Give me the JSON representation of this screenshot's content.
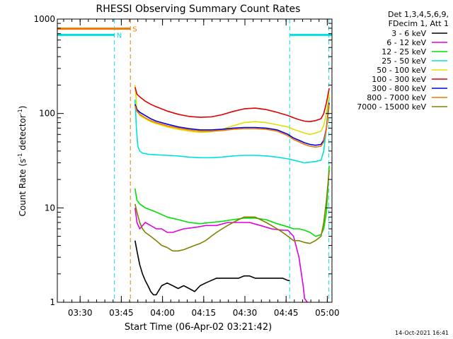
{
  "chart_data": {
    "type": "line",
    "title": "RHESSI Observing Summary Count Rates",
    "xlabel": "Start Time (06-Apr-02 03:21:42)",
    "ylabel_main": "Count Rate (s",
    "ylabel_sup1": "-1",
    "ylabel_mid": " detector",
    "ylabel_sup2": "-1",
    "ylabel_end": ")",
    "x_unit": "minutes after 03:21:42",
    "xlim": [
      0,
      100
    ],
    "ylim": [
      1,
      1000
    ],
    "yscale": "log",
    "yticks": [
      {
        "value": 1,
        "label": "1"
      },
      {
        "value": 10,
        "label": "10"
      },
      {
        "value": 100,
        "label": "100"
      },
      {
        "value": 1000,
        "label": "1000"
      }
    ],
    "xticks": [
      {
        "value": 8.3,
        "label": "03:30"
      },
      {
        "value": 23.3,
        "label": "03:45"
      },
      {
        "value": 38.3,
        "label": "04:00"
      },
      {
        "value": 53.3,
        "label": "04:15"
      },
      {
        "value": 68.3,
        "label": "04:30"
      },
      {
        "value": 83.3,
        "label": "04:45"
      },
      {
        "value": 98.3,
        "label": "05:00"
      }
    ],
    "legend_header": [
      "Det 1,3,4,5,6,9,",
      "FDecim 1, Att 1"
    ],
    "legend_placement": "right",
    "footer": "14-Oct-2021 16:41",
    "flags": [
      {
        "label": "N",
        "color": "#00e0e0",
        "y": 680,
        "segments": [
          [
            0,
            20.8
          ],
          [
            84.6,
            100
          ]
        ]
      },
      {
        "label": "S",
        "color": "#f07800",
        "y": 790,
        "segments": [
          [
            0,
            26.6
          ]
        ]
      }
    ],
    "vlines": [
      {
        "x": 20.8,
        "color": "#00e0e0"
      },
      {
        "x": 26.6,
        "color": "#f07800"
      },
      {
        "x": 84.6,
        "color": "#00e0e0"
      },
      {
        "x": 98.8,
        "color": "#00e0e0"
      }
    ],
    "series": [
      {
        "name": "3 - 6 keV",
        "color": "#000000",
        "x": [
          28.3,
          29,
          30,
          31,
          32,
          33,
          34,
          35,
          36,
          38,
          40,
          42,
          44,
          46,
          48,
          50,
          52,
          54,
          56,
          58,
          60,
          62,
          64,
          66,
          68,
          70,
          72,
          74,
          76,
          78,
          80,
          82,
          84,
          84.6
        ],
        "y": [
          4.5,
          3.5,
          2.5,
          2,
          1.7,
          1.5,
          1.3,
          1.2,
          1.2,
          1.5,
          1.6,
          1.5,
          1.4,
          1.5,
          1.4,
          1.3,
          1.5,
          1.6,
          1.7,
          1.8,
          1.8,
          1.8,
          1.8,
          1.8,
          1.9,
          1.9,
          1.8,
          1.8,
          1.8,
          1.8,
          1.8,
          1.8,
          1.7,
          1.7
        ]
      },
      {
        "name": "6 - 12 keV",
        "color": "#e000e0",
        "x": [
          28.3,
          29,
          30,
          32,
          34,
          36,
          38,
          40,
          42,
          46,
          50,
          54,
          58,
          62,
          66,
          70,
          74,
          78,
          82,
          84,
          86,
          88,
          89.5,
          90,
          91
        ],
        "y": [
          10,
          7,
          6,
          7,
          6.5,
          6,
          6,
          5.5,
          5.5,
          6,
          6.2,
          6.5,
          6.5,
          7,
          7,
          7,
          6.5,
          6,
          5.8,
          5.8,
          5,
          3,
          1.5,
          1.1,
          1
        ]
      },
      {
        "name": "12 - 25 keV",
        "color": "#00e000",
        "x": [
          28.3,
          29,
          30,
          32,
          34,
          36,
          38,
          40,
          44,
          48,
          52,
          56,
          60,
          64,
          68,
          72,
          76,
          80,
          84,
          86,
          88,
          90,
          92,
          94,
          96,
          97,
          98,
          99
        ],
        "y": [
          16,
          12,
          11,
          10,
          9.5,
          9,
          8.5,
          8,
          7.5,
          7,
          6.8,
          7,
          7.2,
          7.5,
          7.8,
          7.8,
          7.5,
          6.8,
          6.3,
          6,
          6,
          5.8,
          5.5,
          5,
          5.2,
          6,
          9,
          28
        ]
      },
      {
        "name": "25 - 50 keV",
        "color": "#00e0e0",
        "x": [
          28.3,
          28.8,
          29.3,
          30,
          31,
          33,
          36,
          40,
          44,
          48,
          52,
          56,
          60,
          64,
          68,
          72,
          76,
          80,
          84,
          86,
          88,
          90,
          92,
          94,
          96,
          97,
          98,
          99
        ],
        "y": [
          140,
          70,
          45,
          40,
          38,
          37,
          36.5,
          36,
          35.5,
          34.5,
          34,
          34,
          34.5,
          35.5,
          36,
          36,
          35.5,
          34.5,
          33,
          32,
          31,
          30,
          30.5,
          31,
          32,
          40,
          70,
          150
        ]
      },
      {
        "name": "50 - 100 keV",
        "color": "#e0e000",
        "x": [
          28.3,
          29,
          30,
          32,
          34,
          36,
          38,
          40,
          44,
          48,
          52,
          56,
          60,
          64,
          68,
          72,
          76,
          80,
          84,
          86,
          88,
          90,
          92,
          94,
          96,
          97,
          98,
          99
        ],
        "y": [
          200,
          110,
          95,
          88,
          82,
          78,
          75,
          72,
          68,
          65,
          63,
          64,
          68,
          74,
          80,
          82,
          80,
          76,
          72,
          68,
          65,
          62,
          60,
          62,
          65,
          75,
          100,
          160
        ]
      },
      {
        "name": "100 - 300 keV",
        "color": "#e00000",
        "x": [
          28.3,
          29,
          30,
          32,
          34,
          36,
          38,
          40,
          44,
          48,
          52,
          56,
          60,
          64,
          68,
          72,
          76,
          80,
          84,
          86,
          88,
          90,
          92,
          94,
          96,
          97,
          98,
          99
        ],
        "y": [
          190,
          160,
          150,
          135,
          125,
          118,
          112,
          106,
          98,
          93,
          91,
          92,
          97,
          105,
          112,
          114,
          110,
          103,
          95,
          90,
          86,
          83,
          82,
          84,
          88,
          100,
          130,
          185
        ]
      },
      {
        "name": "300 - 800 keV",
        "color": "#0000e0",
        "x": [
          28.3,
          29,
          30,
          32,
          34,
          36,
          38,
          40,
          44,
          48,
          52,
          56,
          60,
          64,
          68,
          72,
          76,
          80,
          84,
          86,
          88,
          90,
          92,
          94,
          96,
          97,
          98,
          99
        ],
        "y": [
          125,
          110,
          103,
          95,
          88,
          83,
          80,
          77,
          72,
          69,
          67,
          67,
          68,
          70,
          71,
          71,
          70,
          67,
          60,
          55,
          52,
          49,
          47,
          46,
          47,
          52,
          70,
          130
        ]
      },
      {
        "name": "800 - 7000 keV",
        "color": "#f07800",
        "x": [
          28.3,
          29,
          30,
          32,
          34,
          36,
          38,
          40,
          44,
          48,
          52,
          56,
          60,
          64,
          68,
          72,
          76,
          80,
          84,
          86,
          88,
          90,
          92,
          94,
          96,
          97,
          98,
          99
        ],
        "y": [
          120,
          105,
          98,
          90,
          84,
          80,
          77,
          74,
          70,
          67,
          65,
          65,
          66,
          68,
          69,
          69,
          68,
          65,
          58,
          53,
          50,
          47,
          45,
          44,
          45,
          50,
          68,
          125
        ]
      },
      {
        "name": "7000 - 15000 keV",
        "color": "#808000",
        "x": [
          28.3,
          29,
          30,
          31,
          32,
          34,
          36,
          38,
          40,
          42,
          44,
          46,
          48,
          50,
          52,
          54,
          56,
          58,
          60,
          62,
          64,
          66,
          68,
          70,
          72,
          74,
          76,
          78,
          80,
          82,
          84,
          86,
          88,
          90,
          92,
          94,
          96,
          97,
          98,
          99
        ],
        "y": [
          11,
          9,
          7,
          6,
          5.5,
          5,
          4.5,
          4,
          3.8,
          3.5,
          3.5,
          3.6,
          3.8,
          4,
          4.2,
          4.5,
          5,
          5.5,
          6,
          6.5,
          7,
          7.5,
          8,
          8,
          8,
          7.5,
          7,
          6.5,
          6,
          5.5,
          5,
          4.5,
          4.5,
          4.3,
          4.2,
          4.5,
          5,
          7,
          12,
          25
        ]
      }
    ]
  }
}
